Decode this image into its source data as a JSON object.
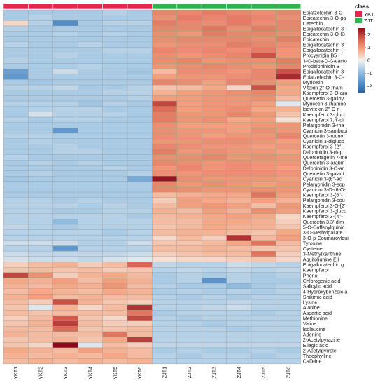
{
  "chart_data": {
    "type": "heatmap",
    "annotation": {
      "label": "class",
      "groups": [
        {
          "name": "YKT",
          "color": "#e8254e"
        },
        {
          "name": "ZJT",
          "color": "#2fb34a"
        }
      ],
      "column_groups": [
        "YKT",
        "YKT",
        "YKT",
        "YKT",
        "YKT",
        "YKT",
        "ZJT",
        "ZJT",
        "ZJT",
        "ZJT",
        "ZJT",
        "ZJT"
      ]
    },
    "columns": [
      "YKT1",
      "YKT2",
      "YKT3",
      "YKT4",
      "YKT5",
      "YKT6",
      "ZJT1",
      "ZJT2",
      "ZJT3",
      "ZJT4",
      "ZJT5",
      "ZJT6"
    ],
    "rows": [
      "Epiafzelechin 3-O-",
      "Epicatechin 3-O-ga",
      "Catechin",
      "Epigallocatechin 3",
      "Epicatechin 3-O-(3",
      "Epicatechin",
      "Epigallocatechin 3",
      "Epigallocatechin-(",
      "Procyanidin B5",
      "3-O-beta-D-Galacto",
      "Prodelphinidin B",
      "Epigallocatechin 3",
      "Epiafzelechin 3-O-",
      "Myricetin",
      "Vitexin 2''-O-rham",
      "Kaempferol 3-O-ara",
      "Quercetin 3-galloy",
      "Myricetin 3-rhamno",
      "Isovitexin 2''-O-r",
      "Kaempferol 3-gluco",
      "Kaempferol 7,4'-di",
      "Pelargonidin 3-rha",
      "Cyanidin 3-sambubi",
      "Quercetin 3-rutino",
      "Cyanidin 3-digluco",
      "Kaempferol 3-(2''-",
      "Delphinidin 3-(6-p",
      "Quercetagetin 7-me",
      "Quercetin 3-arabin",
      "Delphinidin 3-O-ar",
      "Quercetin 3-galact",
      "Cyanidin 3-(6''-ac",
      "Pelargonidin 3-sop",
      "Cyanidin 3-O-(6-O-",
      "Kaempferol 3-(6''-",
      "Pelargonidin 3-cou",
      "Kaempferol 3-O-[2'",
      "Kaempferol 3-gluco",
      "Kaempferol 3-(4''-",
      "Quercetin 3,3'-dim",
      "5-O-Caffeoylquinic",
      "3-O-Methylgallate",
      "3-O-p-Coumaroylqui",
      "Tyrosine",
      "Cysteine",
      "3-Methylxanthine",
      "Aquifoliunine EII",
      "Epigallocatechin g",
      "Kaempferol",
      "Phenol",
      "Chlorogenic acid",
      "Salicylic acid",
      "4-Hydroxybenzoic a",
      "Shikimic acid",
      "Lysine",
      "Alanine",
      "Aspartic acid",
      "Methionine",
      "Valine",
      "Isoleucine",
      "Adenine",
      "2-Acetylpyrazine",
      "Ellagic acid",
      "2-Acetylpyrrole",
      "Theophylline",
      "Caffeine"
    ],
    "values": [
      [
        -0.7,
        -0.7,
        -0.7,
        -0.7,
        -0.6,
        -0.7,
        1.2,
        1.2,
        1.3,
        1.2,
        1.1,
        1.2
      ],
      [
        -0.7,
        -0.6,
        -0.7,
        -0.7,
        -0.7,
        -0.7,
        1.1,
        1.3,
        1.2,
        1.3,
        1.2,
        1.1
      ],
      [
        0.3,
        -0.6,
        -1.8,
        -0.7,
        -0.6,
        -0.6,
        1.3,
        1.2,
        1.1,
        1.3,
        1.1,
        1.2
      ],
      [
        -0.6,
        -0.7,
        -0.7,
        -0.7,
        -0.7,
        -0.7,
        1.2,
        1.2,
        1.4,
        1.1,
        1.3,
        1.2
      ],
      [
        -0.7,
        -0.7,
        -0.6,
        -0.7,
        -0.6,
        -0.7,
        1.1,
        1.0,
        1.3,
        1.2,
        1.2,
        1.1
      ],
      [
        -0.7,
        -0.7,
        -0.7,
        -0.7,
        -0.7,
        -0.7,
        1.1,
        1.2,
        1.2,
        1.2,
        1.1,
        1.3
      ],
      [
        -0.6,
        -0.7,
        -0.7,
        -0.6,
        -0.7,
        -0.7,
        1.0,
        1.1,
        1.1,
        1.3,
        1.2,
        1.1
      ],
      [
        -0.7,
        -0.7,
        -0.7,
        -0.7,
        -0.6,
        -0.6,
        1.2,
        1.1,
        1.2,
        1.1,
        1.3,
        1.0
      ],
      [
        -0.7,
        -0.7,
        -0.6,
        -0.7,
        -0.7,
        -0.7,
        1.1,
        1.0,
        1.1,
        1.2,
        1.8,
        1.0
      ],
      [
        -0.6,
        -0.7,
        -0.7,
        -0.7,
        -0.7,
        -0.7,
        1.1,
        1.2,
        1.0,
        1.1,
        1.1,
        1.3
      ],
      [
        -0.7,
        -0.7,
        -0.7,
        -0.6,
        -0.7,
        -0.7,
        1.0,
        1.1,
        1.2,
        1.1,
        1.0,
        1.2
      ],
      [
        -1.5,
        -0.7,
        -0.4,
        -0.7,
        -0.7,
        -0.8,
        0.6,
        1.1,
        1.1,
        1.0,
        1.2,
        1.8
      ],
      [
        -1.6,
        -0.7,
        -0.7,
        -0.7,
        -0.7,
        -0.7,
        0.9,
        1.0,
        1.0,
        1.1,
        1.2,
        2.2
      ],
      [
        -0.7,
        -0.8,
        -0.7,
        -0.7,
        -0.7,
        -0.7,
        1.2,
        1.1,
        0.9,
        1.2,
        1.1,
        0.9
      ],
      [
        -0.6,
        -0.6,
        -0.5,
        -0.7,
        -0.7,
        -0.6,
        0.5,
        0.6,
        0.8,
        0.3,
        1.8,
        0.8
      ],
      [
        -0.7,
        -0.7,
        -0.7,
        -0.7,
        -0.6,
        -0.6,
        0.7,
        0.9,
        1.0,
        1.1,
        1.2,
        0.8
      ],
      [
        -0.7,
        -0.7,
        -0.7,
        -0.7,
        -0.7,
        -0.6,
        0.9,
        0.9,
        1.0,
        1.0,
        1.1,
        0.6
      ],
      [
        -0.6,
        -0.6,
        -0.6,
        -0.8,
        -0.6,
        -0.7,
        1.9,
        0.9,
        1.0,
        1.0,
        0.9,
        -0.2
      ],
      [
        -0.7,
        -0.6,
        -0.6,
        -0.6,
        -0.7,
        -0.7,
        1.5,
        0.9,
        1.0,
        1.1,
        0.8,
        0.7
      ],
      [
        -0.7,
        -0.3,
        -0.6,
        -0.6,
        -0.6,
        -0.7,
        1.3,
        1.0,
        1.0,
        1.2,
        1.0,
        0.5
      ],
      [
        -0.6,
        -0.7,
        -0.6,
        -0.6,
        -0.7,
        -0.7,
        1.3,
        1.0,
        1.1,
        0.8,
        0.9,
        0.2
      ],
      [
        -0.7,
        -0.7,
        -0.7,
        -0.7,
        -0.7,
        -0.7,
        1.1,
        0.9,
        0.9,
        0.9,
        1.0,
        1.0
      ],
      [
        -0.7,
        -0.7,
        -1.6,
        -0.7,
        -0.7,
        -0.7,
        1.1,
        1.0,
        1.0,
        0.9,
        1.1,
        1.0
      ],
      [
        -0.6,
        -0.6,
        -0.7,
        -0.7,
        -0.7,
        -0.7,
        1.1,
        1.0,
        0.9,
        1.0,
        1.0,
        1.2
      ],
      [
        -0.7,
        -0.6,
        -0.7,
        -0.7,
        -0.7,
        -0.7,
        1.0,
        1.0,
        1.1,
        1.1,
        1.0,
        0.9
      ],
      [
        -0.7,
        -0.7,
        -0.6,
        -0.7,
        -0.7,
        -0.7,
        1.2,
        1.1,
        1.0,
        1.0,
        0.9,
        1.0
      ],
      [
        -0.7,
        -0.7,
        -0.6,
        -0.6,
        -0.7,
        -0.7,
        1.3,
        1.0,
        1.1,
        1.0,
        1.0,
        0.9
      ],
      [
        -0.6,
        -0.7,
        -0.7,
        -0.7,
        -0.7,
        -0.7,
        1.1,
        1.1,
        1.2,
        1.0,
        1.1,
        1.0
      ],
      [
        -0.7,
        -0.6,
        -0.7,
        -0.6,
        -0.7,
        -0.7,
        1.2,
        1.1,
        1.0,
        1.1,
        1.0,
        1.0
      ],
      [
        -0.7,
        -0.7,
        -0.7,
        -0.7,
        -0.6,
        -0.7,
        1.0,
        1.2,
        1.0,
        1.1,
        1.0,
        0.9
      ],
      [
        -0.7,
        -0.6,
        -0.7,
        -0.7,
        -0.7,
        -0.6,
        1.1,
        1.0,
        1.1,
        1.1,
        1.1,
        1.0
      ],
      [
        -0.8,
        -0.7,
        -0.7,
        -0.7,
        -0.7,
        -1.3,
        2.4,
        1.1,
        1.0,
        1.0,
        1.0,
        0.9
      ],
      [
        -0.7,
        -0.7,
        -0.7,
        -0.7,
        -0.7,
        -0.7,
        1.2,
        1.0,
        1.1,
        1.0,
        0.9,
        1.0
      ],
      [
        -0.7,
        -0.7,
        -0.7,
        -0.7,
        -0.7,
        -0.7,
        1.2,
        1.1,
        1.0,
        1.0,
        1.1,
        1.0
      ],
      [
        -0.7,
        -0.7,
        -0.7,
        -0.7,
        -0.7,
        -0.7,
        0.6,
        0.7,
        0.8,
        0.8,
        1.4,
        0.9
      ],
      [
        -0.6,
        -0.6,
        -0.7,
        -0.6,
        -0.7,
        -0.7,
        0.4,
        0.9,
        0.8,
        0.7,
        0.9,
        0.7
      ],
      [
        -0.6,
        -0.6,
        -0.6,
        -0.7,
        -0.6,
        -0.7,
        0.6,
        0.9,
        1.0,
        0.9,
        0.6,
        1.0
      ],
      [
        -0.6,
        -0.6,
        -0.7,
        -0.7,
        -0.6,
        -0.6,
        0.7,
        0.6,
        0.9,
        0.7,
        1.1,
        0.9
      ],
      [
        -0.6,
        -0.6,
        -0.6,
        -0.6,
        -0.6,
        -0.7,
        0.6,
        0.7,
        0.8,
        0.9,
        0.8,
        0.3
      ],
      [
        -0.6,
        -0.6,
        -1.0,
        -0.6,
        -0.6,
        -0.6,
        0.6,
        0.6,
        0.8,
        0.8,
        0.7,
        0.4
      ],
      [
        -0.5,
        -0.6,
        -0.7,
        -0.6,
        -0.6,
        -0.6,
        0.5,
        0.6,
        0.8,
        0.7,
        0.7,
        0.5
      ],
      [
        -0.6,
        -0.6,
        -0.6,
        -0.6,
        -0.7,
        -0.6,
        0.6,
        0.7,
        0.7,
        0.6,
        0.5,
        0.8
      ],
      [
        -0.6,
        -0.6,
        -0.6,
        -0.6,
        -0.6,
        -0.6,
        0.3,
        0.6,
        0.4,
        2.1,
        0.6,
        0.9
      ],
      [
        -0.4,
        -0.4,
        -0.4,
        -0.6,
        -0.6,
        -0.4,
        0.5,
        0.5,
        0.6,
        0.8,
        1.4,
        0.6
      ],
      [
        -0.6,
        -0.6,
        -1.6,
        -0.6,
        -0.6,
        -0.6,
        0.6,
        0.6,
        0.7,
        0.6,
        0.5,
        0.5
      ],
      [
        -0.4,
        -0.5,
        -0.5,
        -0.5,
        -0.5,
        -0.4,
        0.4,
        0.5,
        0.6,
        0.6,
        1.4,
        0.4
      ],
      [
        -0.3,
        -0.4,
        -0.4,
        -0.5,
        -0.3,
        -0.2,
        0.2,
        0.3,
        0.3,
        0.4,
        0.5,
        0.3
      ],
      [
        0.4,
        0.6,
        0.7,
        0.4,
        0.6,
        1.6,
        -0.5,
        -0.6,
        -0.6,
        -0.4,
        -0.5,
        -0.6
      ],
      [
        0.5,
        0.6,
        0.5,
        0.6,
        0.4,
        0.5,
        -0.6,
        -0.5,
        -0.6,
        -0.5,
        -0.6,
        -0.5
      ],
      [
        1.9,
        1.1,
        0.4,
        0.7,
        0.8,
        0.6,
        -0.7,
        -0.6,
        -0.7,
        -0.6,
        -0.7,
        -0.6
      ],
      [
        0.8,
        0.7,
        0.9,
        0.6,
        0.9,
        0.7,
        -0.7,
        -0.6,
        -1.7,
        -0.6,
        -0.7,
        -0.7
      ],
      [
        0.7,
        0.6,
        0.8,
        0.7,
        1.0,
        0.6,
        -0.6,
        -0.7,
        -0.7,
        -1.0,
        -0.7,
        -0.6
      ],
      [
        0.6,
        0.8,
        0.7,
        0.6,
        0.8,
        0.7,
        -0.7,
        -0.6,
        -0.7,
        -0.6,
        -0.7,
        -0.6
      ],
      [
        0.7,
        0.9,
        0.6,
        0.7,
        0.6,
        0.6,
        -0.6,
        -0.7,
        -0.6,
        -0.7,
        -0.6,
        -0.6
      ],
      [
        0.6,
        0.4,
        1.8,
        0.7,
        0.5,
        0.4,
        -0.6,
        -0.6,
        -0.6,
        -0.5,
        -0.6,
        -0.6
      ],
      [
        0.5,
        -0.2,
        0.7,
        0.3,
        0.6,
        2.1,
        -0.6,
        -0.6,
        -0.5,
        -0.4,
        -0.6,
        -0.6
      ],
      [
        0.6,
        0.5,
        0.6,
        0.6,
        0.6,
        1.4,
        -0.7,
        -0.6,
        -0.6,
        -0.6,
        -0.7,
        -0.6
      ],
      [
        0.4,
        0.6,
        1.7,
        0.5,
        0.3,
        1.9,
        -0.6,
        -0.7,
        -0.6,
        -0.6,
        -0.6,
        -0.6
      ],
      [
        0.5,
        0.7,
        2.0,
        0.6,
        0.4,
        0.4,
        -0.6,
        -0.6,
        -0.7,
        -0.6,
        -0.6,
        -0.6
      ],
      [
        0.6,
        0.6,
        1.5,
        0.5,
        0.5,
        0.6,
        -0.6,
        -0.6,
        -0.6,
        -0.7,
        -0.6,
        -0.6
      ],
      [
        0.7,
        0.6,
        0.6,
        0.6,
        1.4,
        0.6,
        -0.6,
        -0.6,
        -0.6,
        -0.6,
        -0.6,
        -0.6
      ],
      [
        0.5,
        0.6,
        0.7,
        0.5,
        0.8,
        2.0,
        -0.6,
        -0.6,
        -0.6,
        -0.6,
        -0.6,
        -0.6
      ],
      [
        0.5,
        0.3,
        2.7,
        -0.2,
        0.6,
        0.4,
        -0.5,
        -0.5,
        -0.5,
        -0.5,
        -0.5,
        -0.5
      ],
      [
        0.8,
        0.7,
        0.6,
        0.9,
        0.7,
        0.6,
        -0.7,
        -0.6,
        -0.7,
        -0.7,
        -0.6,
        -0.7
      ],
      [
        0.7,
        0.6,
        0.7,
        0.6,
        0.8,
        0.6,
        -0.6,
        -0.7,
        -0.6,
        -0.6,
        -0.7,
        -0.6
      ],
      [
        0.6,
        0.7,
        0.6,
        0.7,
        0.6,
        0.7,
        -0.6,
        -0.6,
        -0.6,
        -0.6,
        -0.6,
        -0.6
      ]
    ],
    "color_scale": {
      "ticks": [
        2,
        1,
        0,
        -1,
        -2
      ],
      "min": -2.5,
      "max": 2.5,
      "colors": [
        "#2a62a8",
        "#5b95cc",
        "#9cc4e4",
        "#f5f2ee",
        "#f4a582",
        "#d6604d",
        "#8b0a1a"
      ]
    }
  }
}
